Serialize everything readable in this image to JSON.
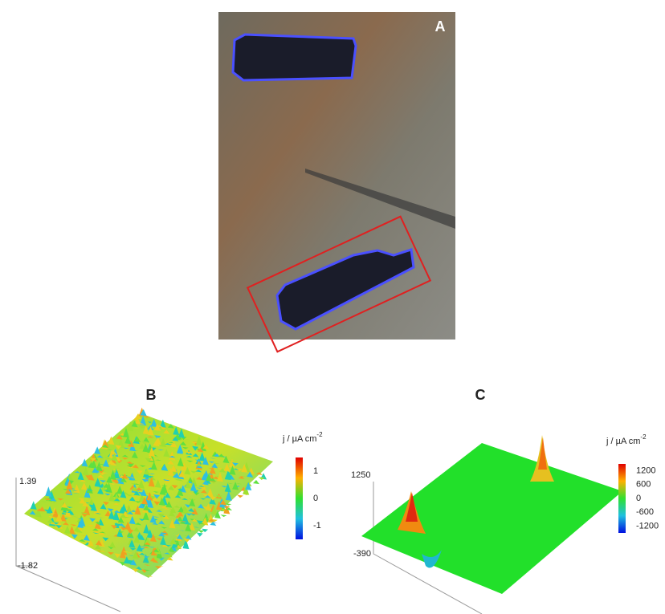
{
  "panels": [
    {
      "label": "A"
    },
    {
      "label": "B",
      "z_axis": {
        "top": "1.39",
        "bottom": "-1.82"
      },
      "colorbar": {
        "title": "j / µA cm",
        "title_exp": "-2",
        "ticks": [
          "1",
          "0",
          "-1"
        ]
      }
    },
    {
      "label": "C",
      "z_axis": {
        "top": "1250",
        "bottom": "-390"
      },
      "colorbar": {
        "title": "j / µA cm",
        "title_exp": "-2",
        "ticks": [
          "1200",
          "600",
          "0",
          "-600",
          "-1200"
        ]
      }
    }
  ]
}
